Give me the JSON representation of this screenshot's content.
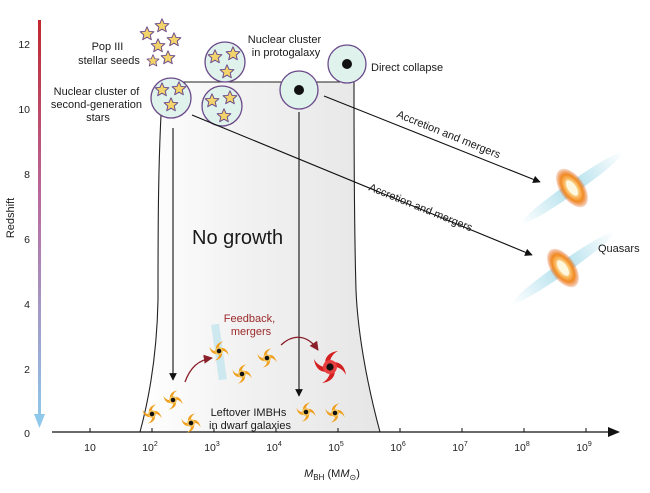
{
  "axes": {
    "y_label": "Redshift",
    "y_ticks": [
      "0",
      "2",
      "4",
      "6",
      "8",
      "10",
      "12"
    ],
    "x_label_main": "M",
    "x_label_sub": "BH",
    "x_label_unit_open": " (M",
    "x_label_unit_sub": "⊙",
    "x_label_unit_close": ")",
    "x_tick_first": "10",
    "x_tick_base": "10",
    "x_tick_exponents": [
      "2",
      "3",
      "4",
      "5",
      "6",
      "7",
      "8",
      "9"
    ]
  },
  "labels": {
    "pop3_line1": "Pop III",
    "pop3_line2": "stellar seeds",
    "nc2_line1": "Nuclear cluster of",
    "nc2_line2": "second-generation",
    "nc2_line3": "stars",
    "ncp_line1": "Nuclear cluster",
    "ncp_line2": "in protogalaxy",
    "direct_collapse": "Direct collapse",
    "no_growth": "No growth",
    "accretion_upper": "Accretion and mergers",
    "accretion_lower": "Accretion and mergers",
    "quasars": "Quasars",
    "feedback_line1": "Feedback,",
    "feedback_line2": "mergers",
    "leftover_line1": "Leftover IMBHs",
    "leftover_line2": "in dwarf galaxies"
  },
  "colors": {
    "redshift_high": "#c0282d",
    "redshift_low": "#8ec8ea",
    "feedback_text": "#9b2a2a",
    "star_fill": "#f2d46a",
    "star_stroke": "#6b4a8a",
    "cluster_fill": "#dff2ec",
    "cluster_stroke": "#6b4a8a",
    "galaxy_orange": "#f0a020",
    "active_galaxy": "#d42020",
    "jet_color": "#a8dcea"
  }
}
